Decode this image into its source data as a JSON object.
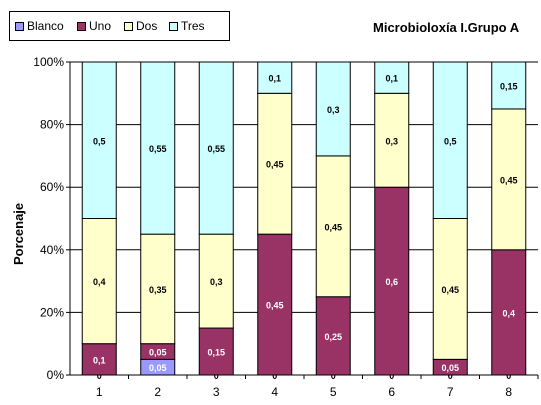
{
  "title": "Microbioloxía I.Grupo A",
  "ylabel": "Porcenaje",
  "chart_data": {
    "type": "bar",
    "stacked": true,
    "normalized": true,
    "title": "Microbioloxía I.Grupo A",
    "xlabel": "",
    "ylabel": "Porcenaje",
    "ylim": [
      0,
      1
    ],
    "yticks": [
      "0%",
      "20%",
      "40%",
      "60%",
      "80%",
      "100%"
    ],
    "categories": [
      "1",
      "2",
      "3",
      "4",
      "5",
      "6",
      "7",
      "8"
    ],
    "series": [
      {
        "name": "Blanco",
        "color": "#9999ff",
        "values": [
          0,
          0.05,
          0,
          0,
          0,
          0,
          0,
          0
        ],
        "labels": [
          "0",
          "0,05",
          "0",
          "0",
          "0",
          "0",
          "0",
          "0"
        ]
      },
      {
        "name": "Uno",
        "color": "#993366",
        "values": [
          0.1,
          0.05,
          0.15,
          0.45,
          0.25,
          0.6,
          0.05,
          0.4
        ],
        "labels": [
          "0,1",
          "0,05",
          "0,15",
          "0,45",
          "0,25",
          "0,6",
          "0,05",
          "0,4"
        ]
      },
      {
        "name": "Dos",
        "color": "#ffffcc",
        "values": [
          0.4,
          0.35,
          0.3,
          0.45,
          0.45,
          0.3,
          0.45,
          0.45
        ],
        "labels": [
          "0,4",
          "0,35",
          "0,3",
          "0,45",
          "0,45",
          "0,3",
          "0,45",
          "0,45"
        ]
      },
      {
        "name": "Tres",
        "color": "#ccffff",
        "values": [
          0.5,
          0.55,
          0.55,
          0.1,
          0.3,
          0.1,
          0.5,
          0.15
        ],
        "labels": [
          "0,5",
          "0,55",
          "0,55",
          "0,1",
          "0,3",
          "0,1",
          "0,5",
          "0,15"
        ]
      }
    ],
    "grid": true,
    "legend": "top-left"
  }
}
